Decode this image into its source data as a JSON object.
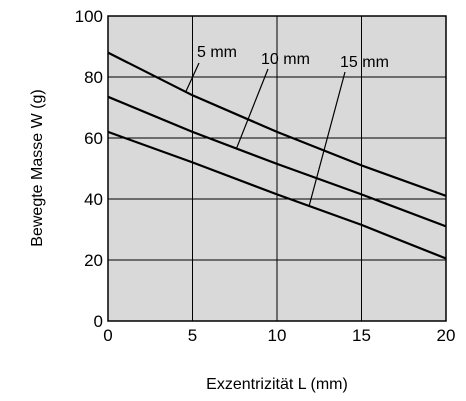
{
  "chart_data": {
    "type": "line",
    "title": "",
    "xlabel": "Exzentrizität L (mm)",
    "ylabel": "Bewegte Masse W (g)",
    "xlim": [
      0,
      20
    ],
    "ylim": [
      0,
      100
    ],
    "xticks": [
      0,
      5,
      10,
      15,
      20
    ],
    "yticks": [
      0,
      20,
      40,
      60,
      80,
      100
    ],
    "grid": true,
    "plot_background": "#d9d9d9",
    "line_color": "#000000",
    "series": [
      {
        "name": "5 mm",
        "x": [
          0,
          5,
          10,
          15,
          20
        ],
        "y": [
          88,
          74,
          62,
          51,
          41
        ]
      },
      {
        "name": "10 mm",
        "x": [
          0,
          5,
          10,
          15,
          20
        ],
        "y": [
          73.5,
          62,
          51.5,
          41.5,
          31
        ]
      },
      {
        "name": "15 mm",
        "x": [
          0,
          5,
          10,
          15,
          20
        ],
        "y": [
          62,
          52,
          41.5,
          31.5,
          20.5
        ]
      }
    ]
  }
}
